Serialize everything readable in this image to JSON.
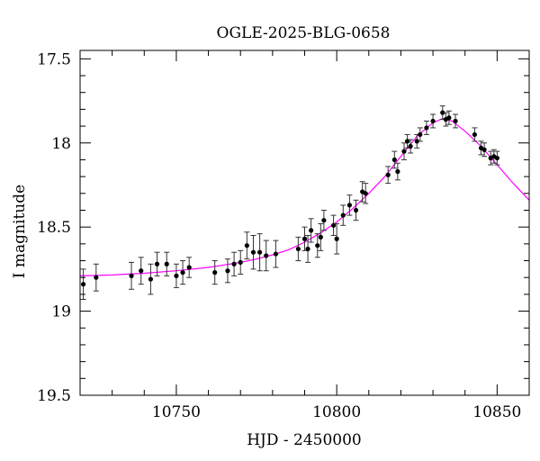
{
  "chart_data": {
    "type": "scatter",
    "title": "OGLE-2025-BLG-0658",
    "xlabel": "HJD - 2450000",
    "ylabel": "I magnitude",
    "xlim": [
      10720,
      10860
    ],
    "ylim": [
      19.5,
      17.45
    ],
    "y_inverted": true,
    "grid": false,
    "x_ticks": [
      10750,
      10800,
      10850
    ],
    "x_tick_labels": [
      "10750",
      "10800",
      "10850"
    ],
    "y_ticks": [
      17.5,
      18,
      18.5,
      19,
      19.5
    ],
    "y_tick_labels": [
      "17.5",
      "18",
      "18.5",
      "19",
      "19.5"
    ],
    "point_color": "#000000",
    "errorbar_color": "#333333",
    "model_color": "#ff00ff",
    "series": [
      {
        "type": "scatter",
        "points": [
          [
            10721,
            18.84,
            0.09
          ],
          [
            10725,
            18.8,
            0.08
          ],
          [
            10736,
            18.79,
            0.08
          ],
          [
            10739,
            18.76,
            0.08
          ],
          [
            10742,
            18.81,
            0.09
          ],
          [
            10744,
            18.72,
            0.07
          ],
          [
            10747,
            18.72,
            0.07
          ],
          [
            10750,
            18.79,
            0.07
          ],
          [
            10752,
            18.77,
            0.07
          ],
          [
            10754,
            18.74,
            0.06
          ],
          [
            10762,
            18.77,
            0.07
          ],
          [
            10766,
            18.76,
            0.07
          ],
          [
            10768,
            18.72,
            0.07
          ],
          [
            10770,
            18.71,
            0.07
          ],
          [
            10772,
            18.61,
            0.08
          ],
          [
            10774,
            18.65,
            0.1
          ],
          [
            10776,
            18.65,
            0.11
          ],
          [
            10778,
            18.67,
            0.09
          ],
          [
            10781,
            18.66,
            0.08
          ],
          [
            10788,
            18.63,
            0.07
          ],
          [
            10790,
            18.57,
            0.07
          ],
          [
            10791,
            18.63,
            0.08
          ],
          [
            10792,
            18.52,
            0.07
          ],
          [
            10794,
            18.61,
            0.07
          ],
          [
            10795,
            18.56,
            0.08
          ],
          [
            10796,
            18.46,
            0.06
          ],
          [
            10799,
            18.49,
            0.06
          ],
          [
            10800,
            18.57,
            0.09
          ],
          [
            10802,
            18.43,
            0.06
          ],
          [
            10804,
            18.37,
            0.06
          ],
          [
            10806,
            18.4,
            0.06
          ],
          [
            10808,
            18.29,
            0.06
          ],
          [
            10809,
            18.3,
            0.06
          ],
          [
            10816,
            18.19,
            0.05
          ],
          [
            10818,
            18.1,
            0.05
          ],
          [
            10819,
            18.17,
            0.05
          ],
          [
            10821,
            18.05,
            0.05
          ],
          [
            10822,
            17.99,
            0.04
          ],
          [
            10823,
            18.02,
            0.04
          ],
          [
            10825,
            17.99,
            0.04
          ],
          [
            10826,
            17.95,
            0.04
          ],
          [
            10828,
            17.91,
            0.04
          ],
          [
            10830,
            17.87,
            0.04
          ],
          [
            10833,
            17.82,
            0.04
          ],
          [
            10834,
            17.86,
            0.04
          ],
          [
            10835,
            17.85,
            0.04
          ],
          [
            10837,
            17.87,
            0.04
          ],
          [
            10843,
            17.95,
            0.04
          ],
          [
            10845,
            18.03,
            0.04
          ],
          [
            10846,
            18.04,
            0.04
          ],
          [
            10848,
            18.09,
            0.04
          ],
          [
            10849,
            18.08,
            0.04
          ],
          [
            10850,
            18.09,
            0.04
          ]
        ]
      },
      {
        "type": "line",
        "x": [
          10720,
          10730,
          10740,
          10750,
          10760,
          10770,
          10775,
          10780,
          10785,
          10790,
          10795,
          10800,
          10805,
          10810,
          10815,
          10820,
          10825,
          10830,
          10833,
          10836,
          10840,
          10845,
          10850,
          10855,
          10860
        ],
        "y": [
          18.79,
          18.785,
          18.775,
          18.76,
          18.74,
          18.71,
          18.69,
          18.665,
          18.635,
          18.59,
          18.535,
          18.47,
          18.39,
          18.3,
          18.2,
          18.08,
          17.96,
          17.88,
          17.855,
          17.87,
          17.93,
          18.02,
          18.13,
          18.24,
          18.34
        ]
      }
    ]
  }
}
